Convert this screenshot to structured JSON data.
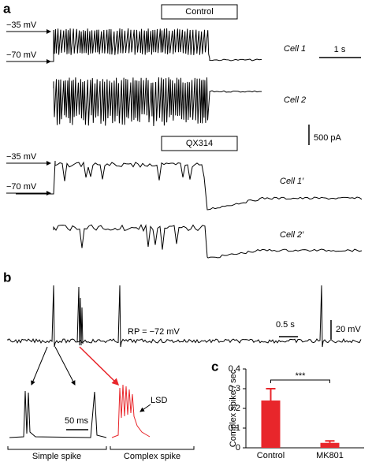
{
  "panel_a": {
    "label": "a",
    "control_box": "Control",
    "qx_box": "QX314",
    "volt_top": "−35 mV",
    "volt_bottom": "−70 mV",
    "volt_top_2": "−35 mV",
    "volt_bottom_2": "−70 mV",
    "cell1": "Cell 1",
    "cell2": "Cell 2",
    "cell1p": "Cell 1′",
    "cell2p": "Cell 2′",
    "time_scale": "1 s",
    "current_scale": "500 pA"
  },
  "panel_b": {
    "label": "b",
    "rp": "RP = −72 mV",
    "time_scale": "0.5 s",
    "volt_scale": "20 mV",
    "inset_time_scale": "50 ms",
    "lsd": "LSD",
    "simple": "Simple spike",
    "complex": "Complex spike"
  },
  "chart_data": {
    "type": "bar",
    "label": "c",
    "ylabel": "Complex spike / sec",
    "categories": [
      "Control",
      "MK801"
    ],
    "values": [
      0.24,
      0.025
    ],
    "errors": [
      0.06,
      0.01
    ],
    "color": "#e8262b",
    "ylim": [
      0,
      0.4
    ],
    "yticks": [
      0,
      0.1,
      0.2,
      0.3,
      0.4
    ],
    "significance": "***"
  }
}
